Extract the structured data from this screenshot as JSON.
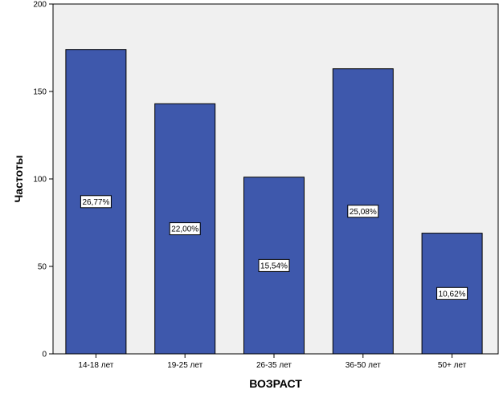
{
  "chart_data": {
    "type": "bar",
    "categories": [
      "14-18 лет",
      "19-25 лет",
      "26-35 лет",
      "36-50 лет",
      "50+ лет"
    ],
    "values": [
      174,
      143,
      101,
      163,
      69
    ],
    "data_labels": [
      "26,77%",
      "22,00%",
      "15,54%",
      "25,08%",
      "10,62%"
    ],
    "xlabel": "ВОЗРАСТ",
    "ylabel": "Частоты",
    "ylim": [
      0,
      200
    ],
    "yticks": [
      0,
      50,
      100,
      150,
      200
    ],
    "ytick_labels": [
      "0",
      "50",
      "100",
      "150",
      "200"
    ],
    "grid": false,
    "legend": "none",
    "colors": {
      "bar_fill": "#3e58ac",
      "bar_stroke": "#000000",
      "plot_background": "#f0f0f0",
      "label_box_fill": "#ffffff",
      "axis": "#000000"
    }
  }
}
